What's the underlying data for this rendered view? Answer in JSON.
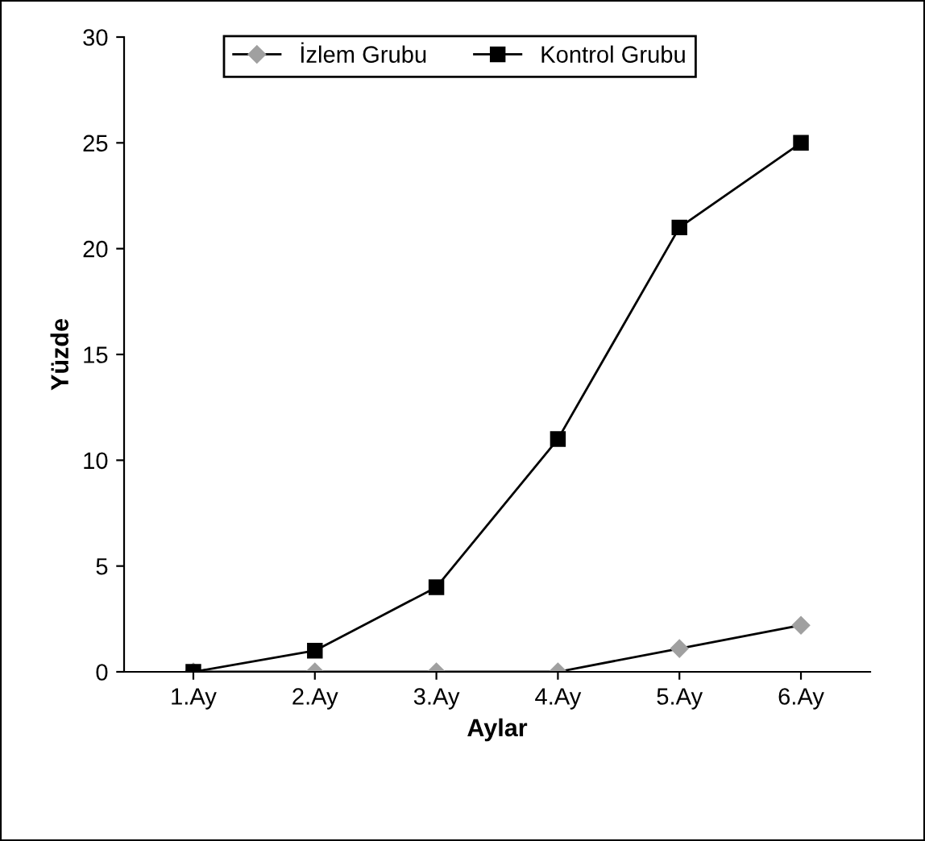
{
  "chart_data": {
    "type": "line",
    "xlabel": "Aylar",
    "ylabel": "Yüzde",
    "categories": [
      "1.Ay",
      "2.Ay",
      "3.Ay",
      "4.Ay",
      "5.Ay",
      "6.Ay"
    ],
    "series": [
      {
        "name": "İzlem Grubu",
        "color": "#a0a0a0",
        "marker": "diamond",
        "values": [
          0,
          0,
          0,
          0,
          1.1,
          2.2
        ]
      },
      {
        "name": "Kontrol Grubu",
        "color": "#000000",
        "marker": "square",
        "values": [
          0,
          1,
          4,
          11,
          21,
          25
        ]
      }
    ],
    "ylim": [
      0,
      30
    ],
    "yticks": [
      0,
      5,
      10,
      15,
      20,
      25,
      30
    ],
    "grid": false,
    "legend": "top",
    "line_style": "solid"
  }
}
